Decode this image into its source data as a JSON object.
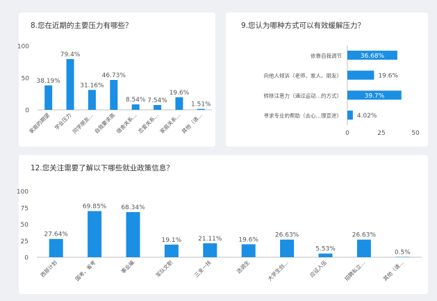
{
  "colors": {
    "bar": "#1a8fe3",
    "axis": "#bfbfbf",
    "grid": "#e6e6e6",
    "text": "#555555",
    "label_light": "#ffffff"
  },
  "chart_data": [
    {
      "id": "q8",
      "type": "bar",
      "orientation": "vertical",
      "title": "8.您在近期的主要压力有哪些？",
      "categories": [
        "家庭的期望",
        "学业压力",
        "同学朋友…",
        "自我要求高",
        "宿舍关系…",
        "恋爱关系…",
        "家庭关系…",
        "其他（请…"
      ],
      "values": [
        38.19,
        79.4,
        31.16,
        46.73,
        8.54,
        7.54,
        19.6,
        1.51
      ],
      "value_labels": [
        "38.19%",
        "79.4%",
        "31.16%",
        "46.73%",
        "8.54%",
        "7.54%",
        "19.6%",
        "1.51%"
      ],
      "ylim": [
        0,
        100
      ],
      "yticks": [
        0,
        50,
        100
      ],
      "grid": false
    },
    {
      "id": "q9",
      "type": "bar",
      "orientation": "horizontal",
      "title": "9.您认为哪种方式可以有效缓解压力？",
      "categories": [
        "依靠自我调节",
        "向他人倾诉（老师、家人、朋友）",
        "转移注意力（通过运动…的方式）",
        "寻求专业的帮助（去心…理宣泄）"
      ],
      "values": [
        36.68,
        19.6,
        39.7,
        4.02
      ],
      "value_labels": [
        "36.68%",
        "19.6%",
        "39.7%",
        "4.02%"
      ],
      "label_inside": [
        true,
        false,
        true,
        false
      ],
      "xlim": [
        0,
        50
      ],
      "xticks": [
        0,
        25,
        50
      ],
      "grid": false
    },
    {
      "id": "q12",
      "type": "bar",
      "orientation": "vertical",
      "title": "12.您关注需要了解以下哪些就业政策信息？",
      "categories": [
        "西部计划",
        "国考、省考",
        "事业编",
        "军队文职",
        "三支一扶",
        "选调生",
        "大学生创…",
        "应征入伍",
        "招聘私立…",
        "其他（请…"
      ],
      "values": [
        27.64,
        69.85,
        68.34,
        19.1,
        21.11,
        19.6,
        26.63,
        5.53,
        26.63,
        0.5
      ],
      "value_labels": [
        "27.64%",
        "69.85%",
        "68.34%",
        "19.1%",
        "21.11%",
        "19.6%",
        "26.63%",
        "5.53%",
        "26.63%",
        "0.5%"
      ],
      "ylim": [
        0,
        100
      ],
      "yticks": [
        0,
        25,
        50,
        75,
        100
      ],
      "grid": false
    }
  ]
}
